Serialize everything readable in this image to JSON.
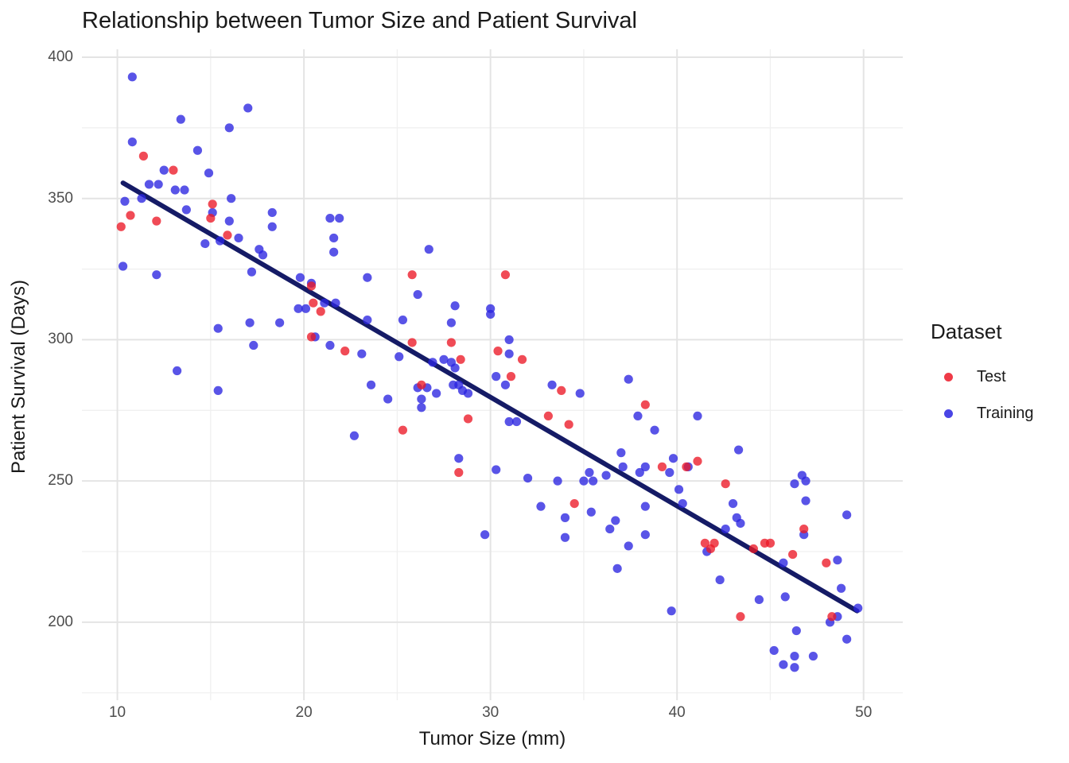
{
  "chart_data": {
    "type": "scatter",
    "title": "Relationship between Tumor Size and Patient Survival",
    "xlabel": "Tumor Size (mm)",
    "ylabel": "Patient Survival (Days)",
    "xlim": [
      8.1,
      52.1
    ],
    "ylim": [
      172.4,
      402.8
    ],
    "x_ticks": [
      10,
      20,
      30,
      40,
      50
    ],
    "x_minor_ticks": [
      15,
      25,
      35,
      45
    ],
    "y_ticks": [
      200,
      250,
      300,
      350,
      400
    ],
    "y_minor_ticks": [
      175,
      225,
      275,
      325,
      375
    ],
    "grid": true,
    "legend_position": "right",
    "point_radius": 5.6,
    "point_opacity": 0.78,
    "trend_line": {
      "color": "#151b66",
      "width": 6,
      "points": [
        [
          10.3,
          355.5
        ],
        [
          49.65,
          204.0
        ]
      ]
    },
    "series": [
      {
        "name": "Training",
        "color": "#2a24e0",
        "points": [
          [
            10.8,
            393
          ],
          [
            17,
            382
          ],
          [
            13.4,
            378
          ],
          [
            16,
            375
          ],
          [
            10.8,
            370
          ],
          [
            14.3,
            367
          ],
          [
            12.5,
            360
          ],
          [
            14.9,
            359
          ],
          [
            11.7,
            355
          ],
          [
            12.2,
            355
          ],
          [
            13.1,
            353
          ],
          [
            13.6,
            353
          ],
          [
            10.4,
            349
          ],
          [
            11.3,
            350
          ],
          [
            16.1,
            350
          ],
          [
            13.7,
            346
          ],
          [
            16,
            342
          ],
          [
            18.3,
            345
          ],
          [
            18.3,
            340
          ],
          [
            21.4,
            343
          ],
          [
            21.9,
            343
          ],
          [
            15.1,
            345
          ],
          [
            15.5,
            335
          ],
          [
            14.7,
            334
          ],
          [
            21.6,
            336
          ],
          [
            21.6,
            331
          ],
          [
            17.6,
            332
          ],
          [
            17.8,
            330
          ],
          [
            17.2,
            324
          ],
          [
            10.3,
            326
          ],
          [
            12.1,
            323
          ],
          [
            16.5,
            336
          ],
          [
            19.8,
            322
          ],
          [
            20.4,
            320
          ],
          [
            19.7,
            311
          ],
          [
            20.1,
            311
          ],
          [
            21.1,
            313
          ],
          [
            21.7,
            313
          ],
          [
            20.6,
            301
          ],
          [
            17.1,
            306
          ],
          [
            15.4,
            304
          ],
          [
            18.7,
            306
          ],
          [
            21.4,
            298
          ],
          [
            17.3,
            298
          ],
          [
            13.2,
            289
          ],
          [
            15.4,
            282
          ],
          [
            22.7,
            266
          ],
          [
            26.7,
            332
          ],
          [
            23.4,
            322
          ],
          [
            26.1,
            316
          ],
          [
            28.1,
            312
          ],
          [
            30,
            311
          ],
          [
            30,
            309
          ],
          [
            23.4,
            307
          ],
          [
            25.3,
            307
          ],
          [
            27.9,
            306
          ],
          [
            31,
            300
          ],
          [
            23.1,
            295
          ],
          [
            25.1,
            294
          ],
          [
            31,
            295
          ],
          [
            27.5,
            293
          ],
          [
            27.9,
            292
          ],
          [
            28.1,
            290
          ],
          [
            26.9,
            292
          ],
          [
            23.6,
            284
          ],
          [
            24.5,
            279
          ],
          [
            26.1,
            283
          ],
          [
            26.6,
            283
          ],
          [
            27.1,
            281
          ],
          [
            26.3,
            279
          ],
          [
            26.3,
            276
          ],
          [
            28,
            284
          ],
          [
            28.3,
            284
          ],
          [
            28.5,
            282
          ],
          [
            28.8,
            281
          ],
          [
            30.3,
            287
          ],
          [
            30.8,
            284
          ],
          [
            33.3,
            284
          ],
          [
            34.8,
            281
          ],
          [
            31,
            271
          ],
          [
            31.4,
            271
          ],
          [
            28.3,
            258
          ],
          [
            30.3,
            254
          ],
          [
            32,
            251
          ],
          [
            33.6,
            250
          ],
          [
            35,
            250
          ],
          [
            35.3,
            253
          ],
          [
            35.5,
            250
          ],
          [
            37,
            260
          ],
          [
            37.1,
            255
          ],
          [
            36.2,
            252
          ],
          [
            32.7,
            241
          ],
          [
            35.4,
            239
          ],
          [
            34,
            237
          ],
          [
            36.7,
            236
          ],
          [
            36.4,
            233
          ],
          [
            29.7,
            231
          ],
          [
            34,
            230
          ],
          [
            36.8,
            219
          ],
          [
            37.4,
            286
          ],
          [
            37.9,
            273
          ],
          [
            41.1,
            273
          ],
          [
            38.8,
            268
          ],
          [
            43.3,
            261
          ],
          [
            39.8,
            258
          ],
          [
            39.6,
            253
          ],
          [
            38.3,
            255
          ],
          [
            38,
            253
          ],
          [
            40.6,
            255
          ],
          [
            46.7,
            252
          ],
          [
            46.9,
            250
          ],
          [
            46.3,
            249
          ],
          [
            40.1,
            247
          ],
          [
            46.9,
            243
          ],
          [
            49.1,
            238
          ],
          [
            40.3,
            242
          ],
          [
            43,
            242
          ],
          [
            43.2,
            237
          ],
          [
            43.4,
            235
          ],
          [
            42.6,
            233
          ],
          [
            38.3,
            241
          ],
          [
            38.3,
            231
          ],
          [
            37.4,
            227
          ],
          [
            46.8,
            231
          ],
          [
            45.7,
            221
          ],
          [
            48.6,
            222
          ],
          [
            48.8,
            212
          ],
          [
            44.4,
            208
          ],
          [
            45.8,
            209
          ],
          [
            49.7,
            205
          ],
          [
            48.6,
            202
          ],
          [
            48.2,
            200
          ],
          [
            39.7,
            204
          ],
          [
            46.4,
            197
          ],
          [
            49.1,
            194
          ],
          [
            45.2,
            190
          ],
          [
            46.3,
            188
          ],
          [
            47.3,
            188
          ],
          [
            45.7,
            185
          ],
          [
            46.3,
            184
          ],
          [
            42.3,
            215
          ],
          [
            41.6,
            225
          ]
        ]
      },
      {
        "name": "Test",
        "color": "#ec1827",
        "points": [
          [
            11.4,
            365
          ],
          [
            13,
            360
          ],
          [
            15.1,
            348
          ],
          [
            10.7,
            344
          ],
          [
            15,
            343
          ],
          [
            12.1,
            342
          ],
          [
            10.2,
            340
          ],
          [
            15.9,
            337
          ],
          [
            20.4,
            319
          ],
          [
            20.5,
            313
          ],
          [
            20.9,
            310
          ],
          [
            20.4,
            301
          ],
          [
            22.2,
            296
          ],
          [
            25.8,
            323
          ],
          [
            30.8,
            323
          ],
          [
            25.8,
            299
          ],
          [
            27.9,
            299
          ],
          [
            30.4,
            296
          ],
          [
            31.7,
            293
          ],
          [
            28.4,
            293
          ],
          [
            26.3,
            284
          ],
          [
            31.1,
            287
          ],
          [
            33.8,
            282
          ],
          [
            28.8,
            272
          ],
          [
            25.3,
            268
          ],
          [
            33.1,
            273
          ],
          [
            34.2,
            270
          ],
          [
            28.3,
            253
          ],
          [
            34.5,
            242
          ],
          [
            38.3,
            277
          ],
          [
            41.1,
            257
          ],
          [
            39.2,
            255
          ],
          [
            40.5,
            255
          ],
          [
            42.6,
            249
          ],
          [
            46.8,
            233
          ],
          [
            44.7,
            228
          ],
          [
            45,
            228
          ],
          [
            44.1,
            226
          ],
          [
            46.2,
            224
          ],
          [
            48,
            221
          ],
          [
            43.4,
            202
          ],
          [
            48.3,
            202
          ],
          [
            41.5,
            228
          ],
          [
            42,
            228
          ],
          [
            41.8,
            226
          ]
        ]
      }
    ]
  },
  "legend": {
    "title": "Dataset",
    "items": [
      {
        "label": "Test",
        "color": "#ec1827"
      },
      {
        "label": "Training",
        "color": "#2a24e0"
      }
    ]
  },
  "grid_colors": {
    "major": "#e4e4e4",
    "minor": "#f0f0f0"
  },
  "text_colors": {
    "title": "#1a1a1a",
    "ticks": "#4d4d4d"
  }
}
